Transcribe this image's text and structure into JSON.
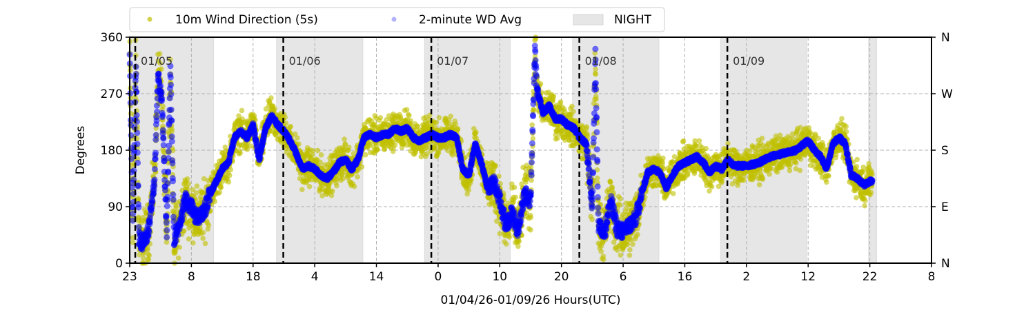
{
  "chart_data": {
    "type": "scatter",
    "xlabel": "01/04/26-01/09/26  Hours(UTC)",
    "ylabel": "Degrees",
    "ylim": [
      0,
      360
    ],
    "xlim_hours_from_start": [
      0,
      130
    ],
    "x_tick_labels": [
      "23",
      "8",
      "18",
      "4",
      "14",
      "0",
      "10",
      "20",
      "6",
      "16",
      "2",
      "12",
      "22",
      "8"
    ],
    "y_ticks": [
      0,
      90,
      180,
      270,
      360
    ],
    "y_tick_labels": [
      "0",
      "90",
      "180",
      "270",
      "360"
    ],
    "right_axis_labels": [
      "N",
      "E",
      "S",
      "W",
      "N"
    ],
    "grid": true,
    "legend": {
      "placement": "top-center",
      "entries": [
        "10m Wind Direction (5s)",
        "2-minute WD Avg",
        "NIGHT"
      ]
    },
    "date_markers": [
      {
        "label": "01/05",
        "hour": 0.9
      },
      {
        "label": "01/06",
        "hour": 24.9
      },
      {
        "label": "01/07",
        "hour": 48.9
      },
      {
        "label": "01/08",
        "hour": 72.9
      },
      {
        "label": "01/09",
        "hour": 96.9
      }
    ],
    "night_periods_hours": [
      [
        0,
        13.6
      ],
      [
        23.8,
        37.8
      ],
      [
        47.8,
        61.7
      ],
      [
        71.8,
        85.8
      ],
      [
        95.8,
        109.8
      ],
      [
        119.8,
        121.1
      ]
    ],
    "colors": {
      "wd_5s": "#bfbf00",
      "wd_avg": "#0000ff",
      "night": "#e6e6e6"
    },
    "series": [
      {
        "name": "2-minute WD Avg (approx. keypoints, hour, degrees)",
        "points": [
          [
            0,
            330
          ],
          [
            0.5,
            60
          ],
          [
            1,
            320
          ],
          [
            1.5,
            40
          ],
          [
            2,
            30
          ],
          [
            3,
            50
          ],
          [
            4,
            130
          ],
          [
            4.6,
            300
          ],
          [
            5.2,
            260
          ],
          [
            6,
            50
          ],
          [
            6.6,
            310
          ],
          [
            7.2,
            40
          ],
          [
            8,
            60
          ],
          [
            9,
            100
          ],
          [
            10,
            90
          ],
          [
            11,
            70
          ],
          [
            12,
            80
          ],
          [
            13,
            110
          ],
          [
            14,
            130
          ],
          [
            15,
            150
          ],
          [
            16,
            160
          ],
          [
            17,
            200
          ],
          [
            18,
            210
          ],
          [
            19,
            200
          ],
          [
            20,
            220
          ],
          [
            21,
            165
          ],
          [
            22,
            215
          ],
          [
            23,
            235
          ],
          [
            24,
            220
          ],
          [
            25,
            210
          ],
          [
            26,
            195
          ],
          [
            27,
            175
          ],
          [
            28,
            150
          ],
          [
            29,
            155
          ],
          [
            30,
            150
          ],
          [
            31,
            140
          ],
          [
            32,
            135
          ],
          [
            33,
            145
          ],
          [
            34,
            160
          ],
          [
            35,
            165
          ],
          [
            36,
            150
          ],
          [
            37,
            165
          ],
          [
            38,
            200
          ],
          [
            39,
            205
          ],
          [
            40,
            200
          ],
          [
            41,
            205
          ],
          [
            42,
            205
          ],
          [
            43,
            215
          ],
          [
            44,
            210
          ],
          [
            45,
            215
          ],
          [
            46,
            200
          ],
          [
            47,
            195
          ],
          [
            48,
            200
          ],
          [
            49,
            205
          ],
          [
            50,
            200
          ],
          [
            51,
            200
          ],
          [
            52,
            205
          ],
          [
            53,
            200
          ],
          [
            54,
            150
          ],
          [
            55,
            140
          ],
          [
            56,
            190
          ],
          [
            57,
            160
          ],
          [
            58,
            120
          ],
          [
            59,
            130
          ],
          [
            60,
            100
          ],
          [
            61,
            60
          ],
          [
            62,
            80
          ],
          [
            63,
            50
          ],
          [
            64,
            110
          ],
          [
            65,
            100
          ],
          [
            65.7,
            340
          ],
          [
            66,
            280
          ],
          [
            67,
            240
          ],
          [
            68,
            250
          ],
          [
            69,
            230
          ],
          [
            70,
            230
          ],
          [
            71,
            220
          ],
          [
            72,
            215
          ],
          [
            73,
            200
          ],
          [
            74,
            190
          ],
          [
            75,
            90
          ],
          [
            75.5,
            330
          ],
          [
            76,
            60
          ],
          [
            77,
            50
          ],
          [
            78,
            100
          ],
          [
            79,
            55
          ],
          [
            80,
            50
          ],
          [
            81,
            60
          ],
          [
            82,
            70
          ],
          [
            83,
            110
          ],
          [
            84,
            145
          ],
          [
            85,
            150
          ],
          [
            86,
            145
          ],
          [
            87,
            120
          ],
          [
            88,
            140
          ],
          [
            89,
            155
          ],
          [
            90,
            160
          ],
          [
            91,
            165
          ],
          [
            92,
            170
          ],
          [
            93,
            160
          ],
          [
            94,
            145
          ],
          [
            95,
            155
          ],
          [
            96,
            150
          ],
          [
            97,
            165
          ],
          [
            98,
            155
          ],
          [
            100,
            155
          ],
          [
            102,
            160
          ],
          [
            104,
            170
          ],
          [
            106,
            175
          ],
          [
            108,
            180
          ],
          [
            110,
            195
          ],
          [
            111,
            180
          ],
          [
            112,
            170
          ],
          [
            113,
            150
          ],
          [
            114,
            190
          ],
          [
            115,
            200
          ],
          [
            116,
            190
          ],
          [
            117,
            140
          ],
          [
            118,
            135
          ],
          [
            119,
            125
          ],
          [
            120,
            130
          ],
          [
            120.4,
            130
          ]
        ]
      },
      {
        "name": "10m Wind Direction (5s)",
        "spread_deg": 30,
        "follows": "2-minute WD Avg"
      }
    ],
    "chaotic_periods_hours": [
      [
        0,
        13
      ],
      [
        58,
        66
      ],
      [
        74,
        83
      ]
    ]
  }
}
